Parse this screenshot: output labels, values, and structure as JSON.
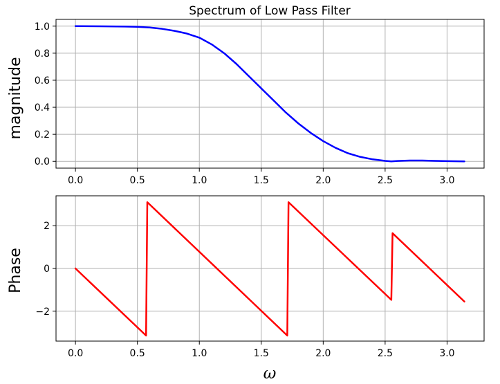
{
  "chart_data": [
    {
      "type": "line",
      "title": "Spectrum of Low Pass Filter",
      "xlabel": "",
      "ylabel": "magnitude",
      "xlim": [
        -0.157,
        3.299
      ],
      "ylim": [
        -0.05,
        1.05
      ],
      "xticks": [
        "0.0",
        "0.5",
        "1.0",
        "1.5",
        "2.0",
        "2.5",
        "3.0"
      ],
      "yticks": [
        "0.0",
        "0.2",
        "0.4",
        "0.6",
        "0.8",
        "1.0"
      ],
      "grid": true,
      "series": [
        {
          "color": "#0000ff",
          "x": [
            0.0,
            0.2,
            0.4,
            0.5,
            0.6,
            0.7,
            0.8,
            0.9,
            1.0,
            1.1,
            1.2,
            1.3,
            1.4,
            1.5,
            1.6,
            1.7,
            1.8,
            1.9,
            2.0,
            2.1,
            2.2,
            2.3,
            2.4,
            2.5,
            2.55,
            2.6,
            2.7,
            2.8,
            2.9,
            3.0,
            3.14
          ],
          "y": [
            1.0,
            0.999,
            0.997,
            0.995,
            0.99,
            0.98,
            0.965,
            0.945,
            0.915,
            0.865,
            0.8,
            0.72,
            0.63,
            0.54,
            0.45,
            0.36,
            0.28,
            0.21,
            0.15,
            0.1,
            0.06,
            0.033,
            0.015,
            0.004,
            0.0,
            0.003,
            0.006,
            0.006,
            0.004,
            0.002,
            0.0
          ]
        }
      ]
    },
    {
      "type": "line",
      "title": "",
      "xlabel": "ω",
      "ylabel": "Phase",
      "xlim": [
        -0.157,
        3.299
      ],
      "ylim": [
        -3.4,
        3.4
      ],
      "xticks": [
        "0.0",
        "0.5",
        "1.0",
        "1.5",
        "2.0",
        "2.5",
        "3.0"
      ],
      "yticks": [
        "−2",
        "0",
        "2"
      ],
      "ytick_values": [
        -2,
        0,
        2
      ],
      "grid": true,
      "series": [
        {
          "color": "#ff0000",
          "x": [
            0.0,
            0.57,
            0.58,
            1.71,
            1.72,
            2.55,
            2.56,
            3.14
          ],
          "y": [
            0.0,
            -3.14,
            3.1,
            -3.14,
            3.1,
            -1.47,
            1.65,
            -1.55
          ]
        }
      ]
    }
  ]
}
